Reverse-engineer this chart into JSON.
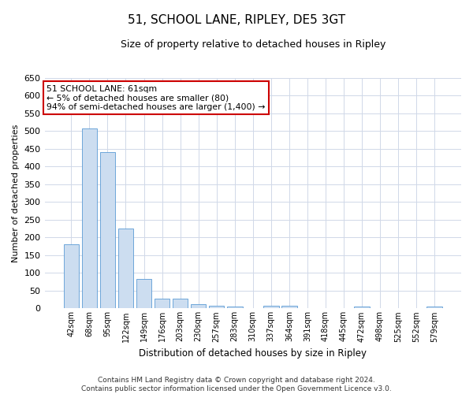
{
  "title": "51, SCHOOL LANE, RIPLEY, DE5 3GT",
  "subtitle": "Size of property relative to detached houses in Ripley",
  "xlabel": "Distribution of detached houses by size in Ripley",
  "ylabel": "Number of detached properties",
  "bar_color": "#ccddf0",
  "bar_edge_color": "#5b9bd5",
  "categories": [
    "42sqm",
    "68sqm",
    "95sqm",
    "122sqm",
    "149sqm",
    "176sqm",
    "203sqm",
    "230sqm",
    "257sqm",
    "283sqm",
    "310sqm",
    "337sqm",
    "364sqm",
    "391sqm",
    "418sqm",
    "445sqm",
    "472sqm",
    "498sqm",
    "525sqm",
    "552sqm",
    "579sqm"
  ],
  "values": [
    180,
    508,
    440,
    225,
    83,
    27,
    27,
    13,
    8,
    5,
    0,
    7,
    8,
    0,
    0,
    0,
    5,
    0,
    0,
    0,
    5
  ],
  "ylim": [
    0,
    650
  ],
  "yticks": [
    0,
    50,
    100,
    150,
    200,
    250,
    300,
    350,
    400,
    450,
    500,
    550,
    600,
    650
  ],
  "annotation_box_text": "51 SCHOOL LANE: 61sqm\n← 5% of detached houses are smaller (80)\n94% of semi-detached houses are larger (1,400) →",
  "annotation_box_color": "#ffffff",
  "annotation_box_edge_color": "#cc0000",
  "footer_line1": "Contains HM Land Registry data © Crown copyright and database right 2024.",
  "footer_line2": "Contains public sector information licensed under the Open Government Licence v3.0.",
  "bg_color": "#ffffff",
  "grid_color": "#d0d8e8"
}
